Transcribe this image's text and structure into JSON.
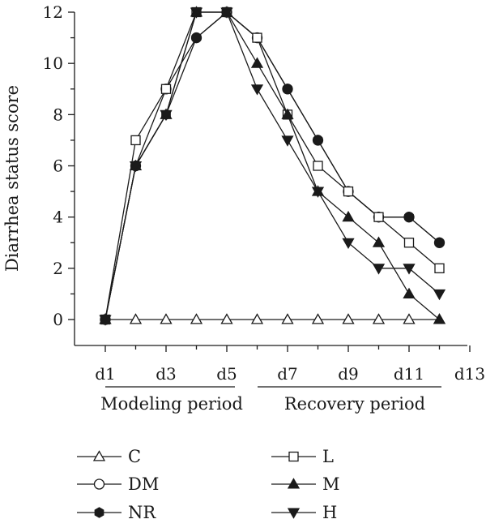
{
  "chart_data": {
    "type": "line",
    "ylabel": "Diarrhea status score",
    "xlabel": "",
    "ylim": [
      0,
      12
    ],
    "yticks": [
      0,
      2,
      4,
      6,
      8,
      10,
      12
    ],
    "xlim": [
      1,
      13
    ],
    "xticks": [
      "d1",
      "d3",
      "d5",
      "d7",
      "d9",
      "d11",
      "d13"
    ],
    "x": [
      1,
      2,
      3,
      4,
      5,
      6,
      7,
      8,
      9,
      10,
      11,
      12
    ],
    "periods": [
      {
        "label": "Modeling period",
        "from": 1,
        "to": 5
      },
      {
        "label": "Recovery period",
        "from": 6,
        "to": 12
      }
    ],
    "series": [
      {
        "name": "C",
        "marker": "triangle-up-open",
        "values": [
          0,
          0,
          0,
          0,
          0,
          0,
          0,
          0,
          0,
          0,
          0,
          0
        ]
      },
      {
        "name": "DM",
        "marker": "circle-open",
        "values": [
          0,
          6,
          9,
          11,
          12,
          11,
          9,
          7,
          5,
          4,
          4,
          3
        ]
      },
      {
        "name": "NR",
        "marker": "hexagon-filled",
        "values": [
          0,
          6,
          8,
          11,
          12,
          11,
          9,
          7,
          5,
          4,
          4,
          3
        ]
      },
      {
        "name": "L",
        "marker": "square-open",
        "values": [
          0,
          7,
          9,
          12,
          12,
          11,
          8,
          6,
          5,
          4,
          3,
          2
        ]
      },
      {
        "name": "M",
        "marker": "triangle-up-filled",
        "values": [
          0,
          6,
          8,
          12,
          12,
          10,
          8,
          5,
          4,
          3,
          1,
          0
        ]
      },
      {
        "name": "H",
        "marker": "triangle-down-filled",
        "values": [
          0,
          6,
          8,
          12,
          12,
          9,
          7,
          5,
          3,
          2,
          2,
          1
        ]
      }
    ],
    "legend": "bottom",
    "grid": false
  }
}
